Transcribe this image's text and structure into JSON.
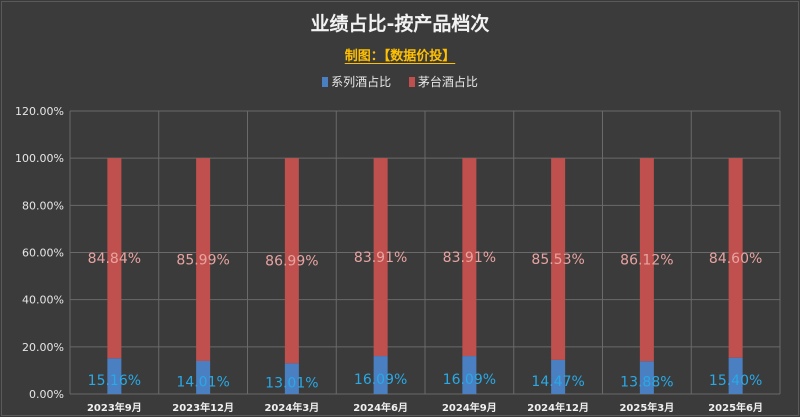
{
  "chart_data": {
    "type": "bar",
    "stacked": true,
    "title": "业绩占比-按产品档次",
    "subtitle": "制图：【数据价投】",
    "categories": [
      "2023年9月",
      "2023年12月",
      "2024年3月",
      "2024年6月",
      "2024年9月",
      "2024年12月",
      "2025年3月",
      "2025年6月"
    ],
    "series": [
      {
        "name": "系列酒占比",
        "color": "#4a7fc1",
        "label_color": "#29a9e6",
        "values": [
          15.16,
          14.01,
          13.01,
          16.09,
          16.09,
          14.47,
          13.88,
          15.4
        ],
        "labels": [
          "15.16%",
          "14.01%",
          "13.01%",
          "16.09%",
          "16.09%",
          "14.47%",
          "13.88%",
          "15.40%"
        ]
      },
      {
        "name": "茅台酒占比",
        "color": "#c0504d",
        "label_color": "#e8a3a0",
        "values": [
          84.84,
          85.99,
          86.99,
          83.91,
          83.91,
          85.53,
          86.12,
          84.6
        ],
        "labels": [
          "84.84%",
          "85.99%",
          "86.99%",
          "83.91%",
          "83.91%",
          "85.53%",
          "86.12%",
          "84.60%"
        ]
      }
    ],
    "ylim": [
      0,
      120
    ],
    "yticks": [
      "0.00%",
      "20.00%",
      "40.00%",
      "60.00%",
      "80.00%",
      "100.00%",
      "120.00%"
    ],
    "grid": true,
    "legend_position": "top"
  }
}
